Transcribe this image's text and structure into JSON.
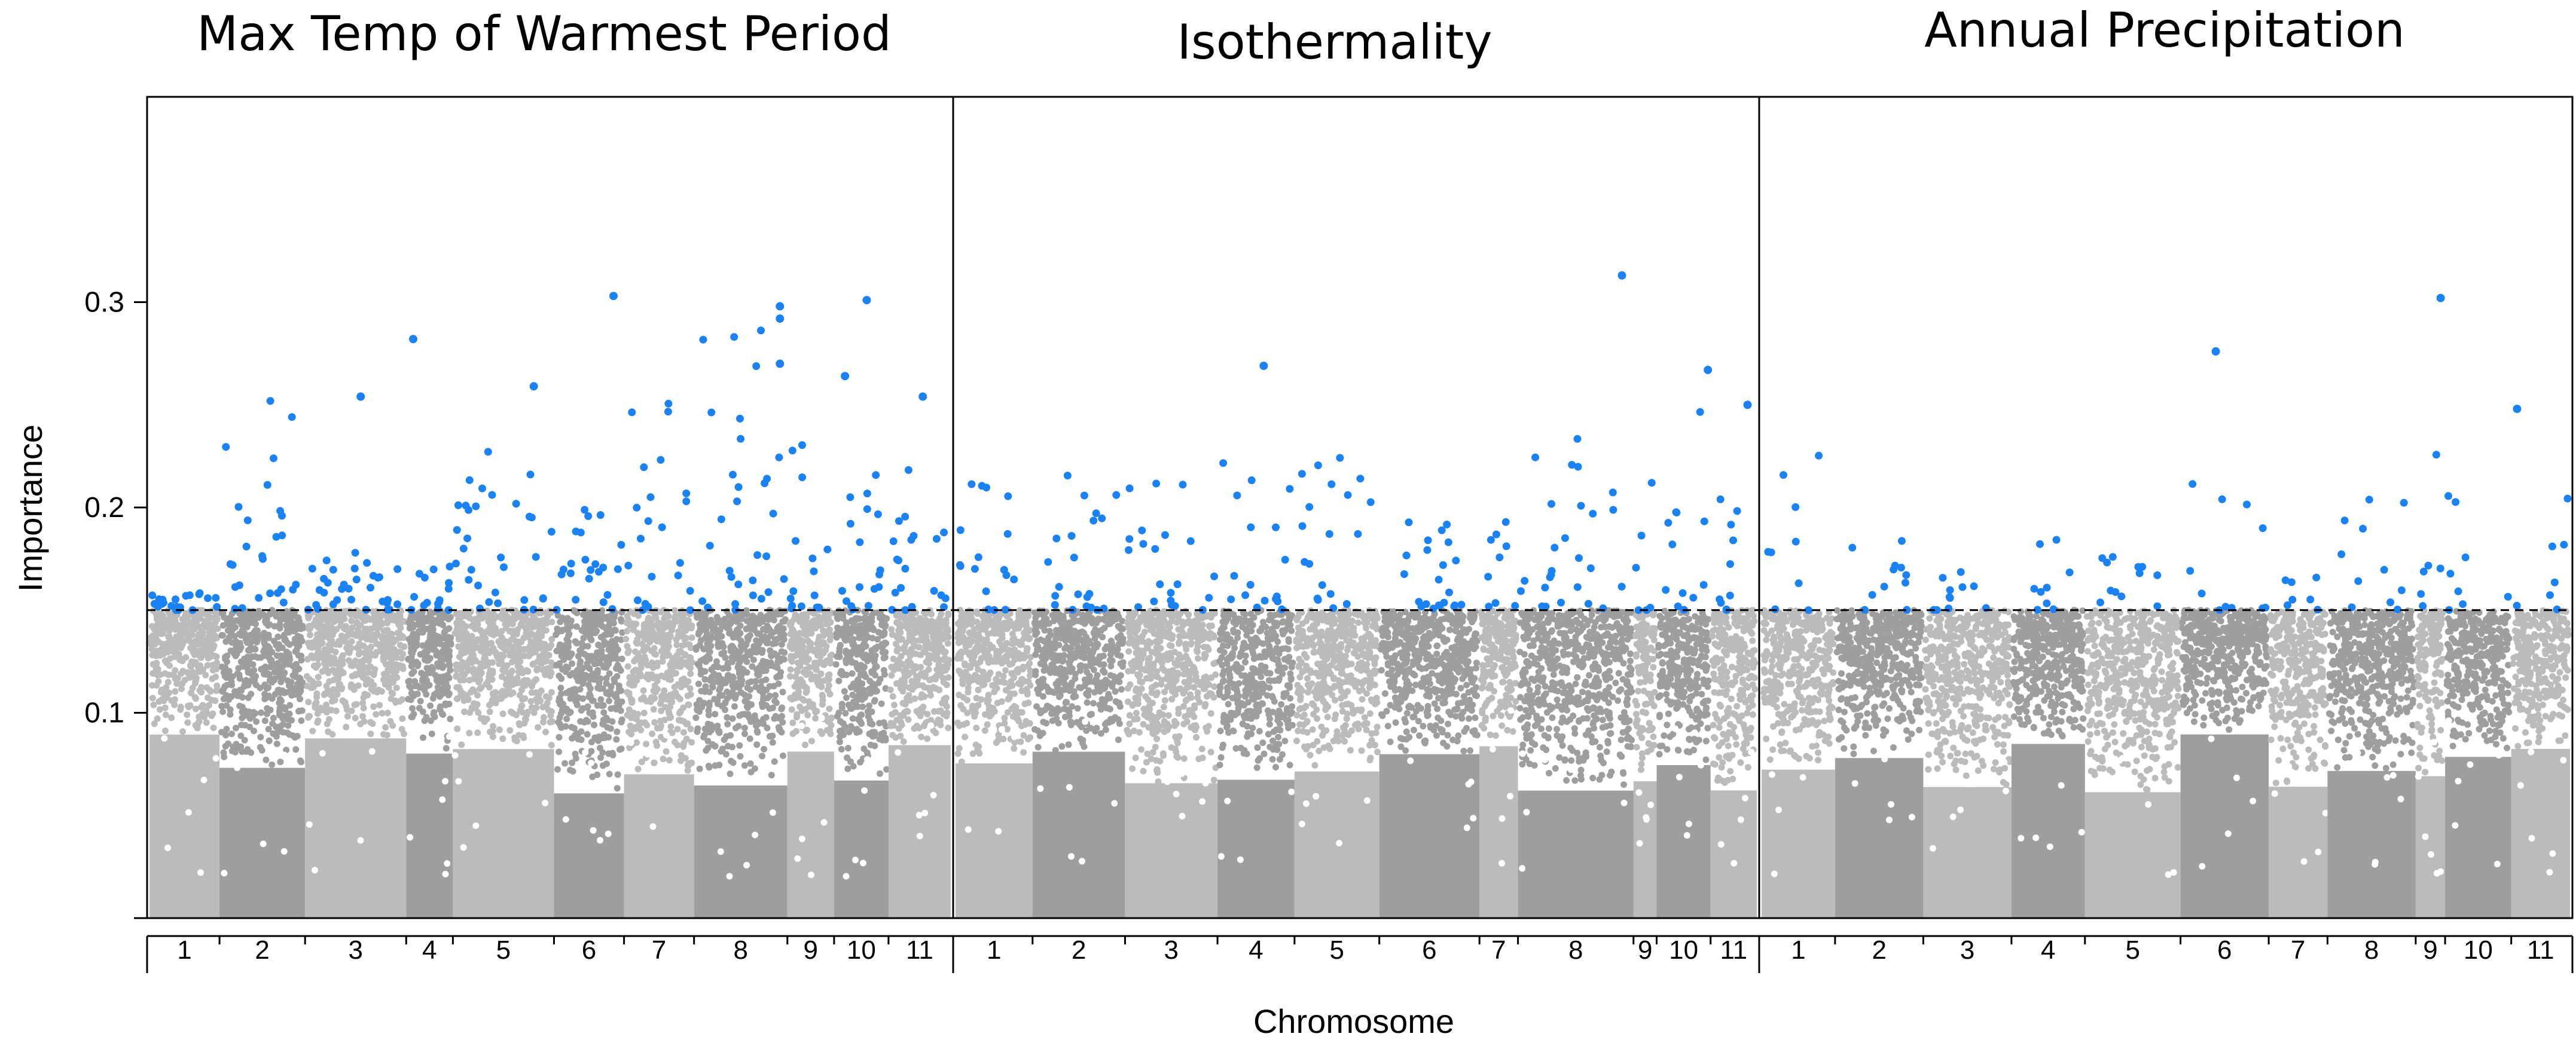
{
  "chart_data": {
    "type": "scatter",
    "subtype": "manhattan",
    "ylabel": "Importance",
    "xlabel": "Chromosome",
    "ylim": [
      0,
      0.4
    ],
    "yticks": [
      0.1,
      0.2,
      0.3
    ],
    "ytick_labels": [
      "0.1",
      "0.2",
      "0.3"
    ],
    "threshold": 0.15,
    "chromosomes": [
      "1",
      "2",
      "3",
      "4",
      "5",
      "6",
      "7",
      "8",
      "9",
      "10",
      "11"
    ],
    "colors": {
      "above_threshold": "#1a82f7",
      "chrom_light": "#bbbbbb",
      "chrom_dark": "#9e9e9e",
      "threshold_line": "#000000",
      "frame": "#000000"
    },
    "panels": [
      {
        "title": "Max Temp of Warmest Period",
        "chromosome_widths": [
          0.09,
          0.11,
          0.13,
          0.06,
          0.13,
          0.09,
          0.09,
          0.12,
          0.06,
          0.07,
          0.08
        ],
        "chromosome_max": [
          0.16,
          0.258,
          0.179,
          0.176,
          0.231,
          0.236,
          0.252,
          0.299,
          0.248,
          0.256,
          0.221
        ],
        "highlights": [
          {
            "chr": "3",
            "pos": 0.55,
            "value": 0.254
          },
          {
            "chr": "4",
            "pos": 0.15,
            "value": 0.282
          },
          {
            "chr": "5",
            "pos": 0.8,
            "value": 0.259
          },
          {
            "chr": "6",
            "pos": 0.85,
            "value": 0.303
          },
          {
            "chr": "8",
            "pos": 0.92,
            "value": 0.298
          },
          {
            "chr": "8",
            "pos": 0.92,
            "value": 0.292
          },
          {
            "chr": "8",
            "pos": 0.92,
            "value": 0.27
          },
          {
            "chr": "10",
            "pos": 0.2,
            "value": 0.264
          },
          {
            "chr": "10",
            "pos": 0.6,
            "value": 0.301
          },
          {
            "chr": "11",
            "pos": 0.55,
            "value": 0.254
          }
        ],
        "n_above": 290
      },
      {
        "title": "Isothermality",
        "chromosome_widths": [
          0.1,
          0.12,
          0.12,
          0.1,
          0.11,
          0.13,
          0.05,
          0.15,
          0.03,
          0.07,
          0.06
        ],
        "chromosome_max": [
          0.225,
          0.219,
          0.225,
          0.223,
          0.232,
          0.207,
          0.199,
          0.234,
          0.219,
          0.249,
          0.241
        ],
        "highlights": [
          {
            "chr": "4",
            "pos": 0.6,
            "value": 0.269
          },
          {
            "chr": "8",
            "pos": 0.9,
            "value": 0.313
          },
          {
            "chr": "10",
            "pos": 0.95,
            "value": 0.267
          },
          {
            "chr": "11",
            "pos": 0.8,
            "value": 0.25
          }
        ],
        "n_above": 200
      },
      {
        "title": "Annual Precipitation",
        "chromosome_widths": [
          0.1,
          0.12,
          0.12,
          0.1,
          0.13,
          0.12,
          0.08,
          0.12,
          0.04,
          0.09,
          0.08
        ],
        "chromosome_max": [
          0.232,
          0.188,
          0.176,
          0.189,
          0.176,
          0.219,
          0.17,
          0.218,
          0.226,
          0.229,
          0.232
        ],
        "highlights": [
          {
            "chr": "6",
            "pos": 0.4,
            "value": 0.276
          },
          {
            "chr": "9",
            "pos": 0.85,
            "value": 0.302
          },
          {
            "chr": "11",
            "pos": 0.1,
            "value": 0.248
          }
        ],
        "n_above": 110
      }
    ]
  }
}
